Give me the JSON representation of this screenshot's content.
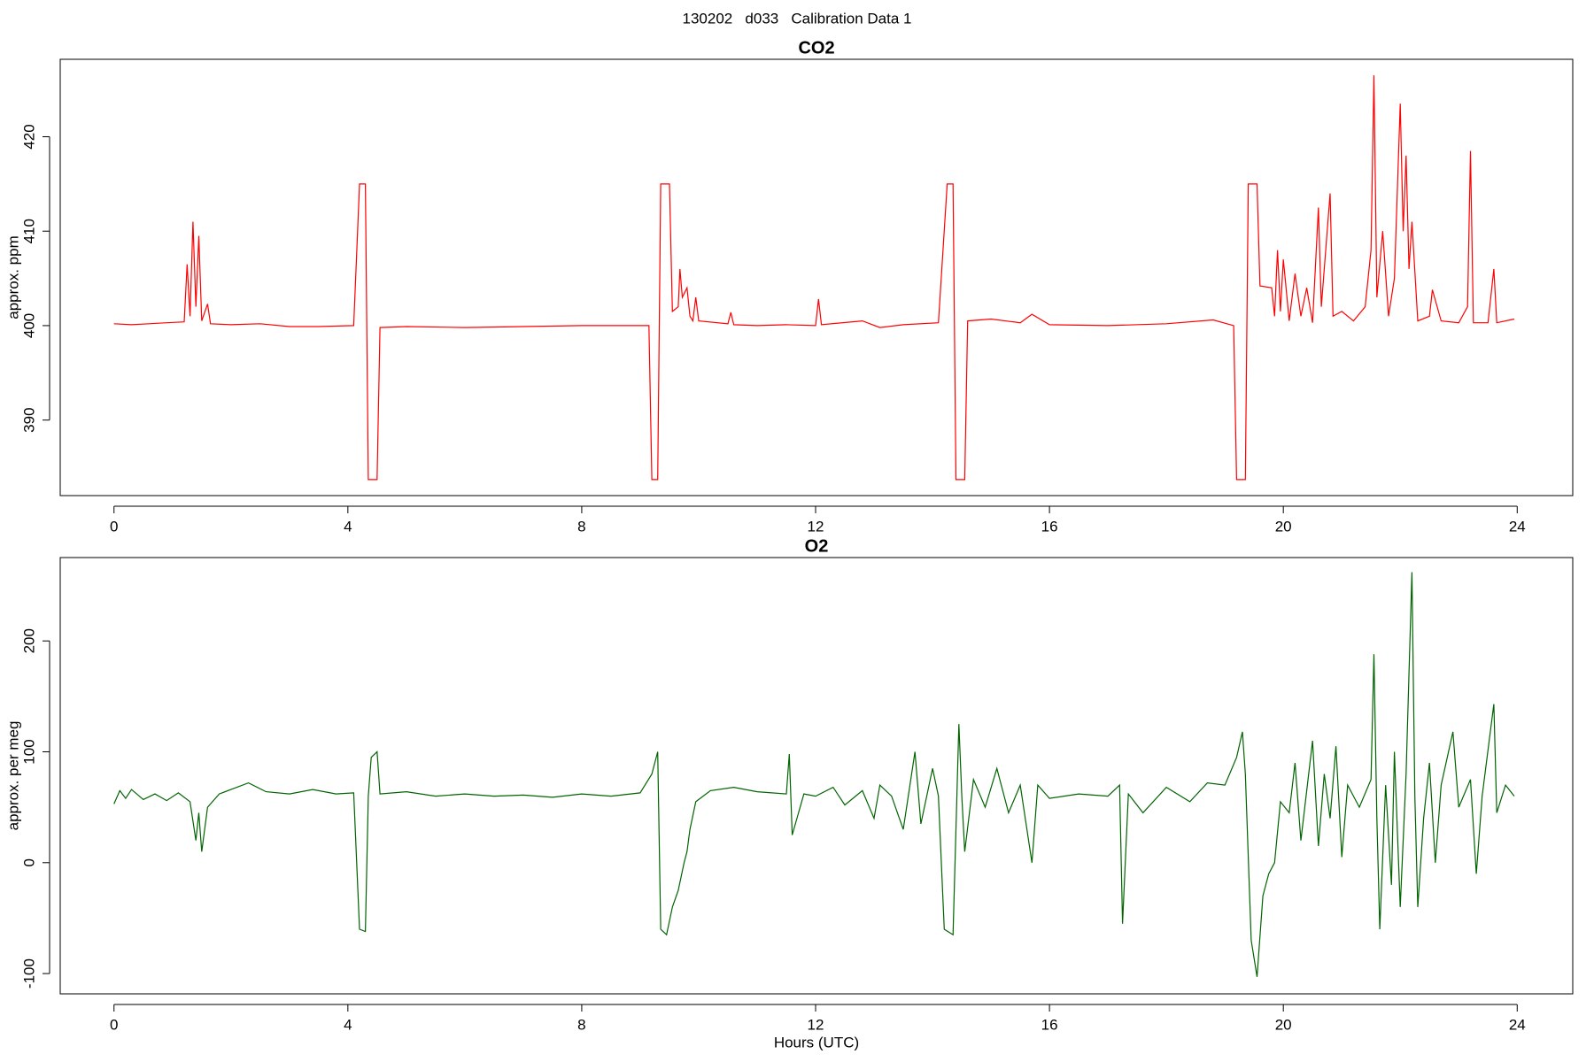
{
  "title": "130202   d033   Calibration Data 1",
  "chart_data": [
    {
      "type": "line",
      "title": "CO2",
      "ylabel": "approx. ppm",
      "color": "#ff0000",
      "x": [
        0,
        0.3,
        0.6,
        0.9,
        1.2,
        1.25,
        1.3,
        1.35,
        1.4,
        1.45,
        1.5,
        1.6,
        1.65,
        2,
        2.5,
        3,
        3.5,
        4.1,
        4.2,
        4.3,
        4.35,
        4.5,
        4.55,
        5,
        6,
        7,
        8,
        9.15,
        9.2,
        9.3,
        9.35,
        9.5,
        9.55,
        9.65,
        9.68,
        9.72,
        9.8,
        9.85,
        9.9,
        9.95,
        10,
        10.5,
        10.55,
        10.6,
        11,
        11.5,
        12,
        12.05,
        12.1,
        12.8,
        13.1,
        13.5,
        14.1,
        14.25,
        14.35,
        14.4,
        14.55,
        14.6,
        15,
        15.5,
        15.7,
        16,
        17,
        18,
        18.8,
        19.15,
        19.2,
        19.35,
        19.4,
        19.55,
        19.6,
        19.8,
        19.85,
        19.9,
        19.95,
        20,
        20.1,
        20.2,
        20.3,
        20.4,
        20.5,
        20.6,
        20.65,
        20.8,
        20.85,
        21,
        21.2,
        21.4,
        21.5,
        21.55,
        21.6,
        21.7,
        21.8,
        21.9,
        22,
        22.05,
        22.1,
        22.15,
        22.2,
        22.3,
        22.5,
        22.55,
        22.7,
        23,
        23.15,
        23.2,
        23.25,
        23.5,
        23.6,
        23.65,
        23.95
      ],
      "values": [
        400.2,
        400.1,
        400.2,
        400.3,
        400.4,
        406.5,
        401,
        411,
        402,
        409.5,
        400.5,
        402.3,
        400.2,
        400.1,
        400.2,
        399.9,
        399.9,
        400,
        415,
        415,
        383.7,
        383.7,
        399.8,
        399.9,
        399.8,
        399.9,
        400,
        400,
        383.7,
        383.7,
        415,
        415,
        401.5,
        402,
        406,
        403,
        404,
        401,
        400.5,
        403,
        400.5,
        400.2,
        401.4,
        400.1,
        400,
        400.1,
        400,
        402.8,
        400.1,
        400.5,
        399.8,
        400.1,
        400.3,
        415,
        415,
        383.7,
        383.7,
        400.5,
        400.7,
        400.3,
        401.2,
        400.1,
        400,
        400.2,
        400.6,
        400,
        383.7,
        383.7,
        415,
        415,
        404.2,
        404,
        401,
        408,
        401.5,
        407,
        400.5,
        405.5,
        401,
        404,
        400.3,
        412.5,
        402,
        414,
        401,
        401.5,
        400.5,
        402,
        408,
        426.5,
        403,
        410,
        401,
        405,
        423.5,
        410,
        418,
        406,
        411,
        400.5,
        401,
        403.8,
        400.5,
        400.3,
        402,
        418.5,
        400.3,
        400.3,
        406,
        400.3,
        400.7
      ],
      "xlim": [
        -0.92,
        24.95
      ],
      "ylim": [
        382.0,
        428.2
      ],
      "xticks": [
        0,
        4,
        8,
        12,
        16,
        20,
        24
      ],
      "yticks": [
        390,
        400,
        410,
        420
      ]
    },
    {
      "type": "line",
      "title": "O2",
      "ylabel": "approx. per meg",
      "xlabel": "Hours (UTC)",
      "color": "#006400",
      "x": [
        0,
        0.1,
        0.2,
        0.3,
        0.5,
        0.7,
        0.9,
        1.1,
        1.3,
        1.4,
        1.45,
        1.5,
        1.6,
        1.8,
        2,
        2.3,
        2.6,
        3,
        3.4,
        3.8,
        4.1,
        4.2,
        4.3,
        4.35,
        4.4,
        4.5,
        4.55,
        5,
        5.5,
        6,
        6.5,
        7,
        7.5,
        8,
        8.5,
        9,
        9.2,
        9.3,
        9.35,
        9.45,
        9.55,
        9.65,
        9.75,
        9.8,
        9.85,
        9.95,
        10.2,
        10.6,
        11,
        11.5,
        11.55,
        11.6,
        11.8,
        12,
        12.3,
        12.5,
        12.8,
        13,
        13.1,
        13.3,
        13.5,
        13.7,
        13.8,
        14,
        14.1,
        14.2,
        14.35,
        14.45,
        14.5,
        14.55,
        14.7,
        14.9,
        15.1,
        15.3,
        15.5,
        15.7,
        15.8,
        16,
        16.5,
        17,
        17.2,
        17.25,
        17.35,
        17.6,
        18,
        18.4,
        18.7,
        19,
        19.2,
        19.3,
        19.35,
        19.45,
        19.55,
        19.65,
        19.75,
        19.85,
        19.95,
        20.1,
        20.2,
        20.3,
        20.4,
        20.5,
        20.6,
        20.7,
        20.8,
        20.9,
        21,
        21.1,
        21.3,
        21.5,
        21.55,
        21.6,
        21.65,
        21.75,
        21.85,
        21.9,
        22,
        22.1,
        22.2,
        22.25,
        22.3,
        22.4,
        22.5,
        22.6,
        22.7,
        22.9,
        23,
        23.2,
        23.3,
        23.4,
        23.6,
        23.65,
        23.8,
        23.95
      ],
      "values": [
        53,
        65,
        58,
        66,
        57,
        62,
        56,
        63,
        55,
        20,
        45,
        10,
        50,
        62,
        66,
        72,
        64,
        62,
        66,
        62,
        63,
        -60,
        -62,
        60,
        95,
        100,
        62,
        64,
        60,
        62,
        60,
        61,
        59,
        62,
        60,
        63,
        80,
        100,
        -60,
        -65,
        -40,
        -25,
        0,
        10,
        30,
        55,
        65,
        68,
        64,
        62,
        98,
        25,
        62,
        60,
        68,
        52,
        65,
        40,
        70,
        60,
        30,
        100,
        35,
        85,
        60,
        -60,
        -65,
        125,
        60,
        10,
        75,
        50,
        85,
        45,
        70,
        0,
        70,
        58,
        62,
        60,
        70,
        -55,
        62,
        45,
        68,
        55,
        72,
        70,
        95,
        118,
        80,
        -70,
        -103,
        -30,
        -10,
        0,
        55,
        45,
        90,
        20,
        65,
        110,
        15,
        80,
        40,
        105,
        5,
        70,
        50,
        75,
        188,
        40,
        -60,
        70,
        -20,
        100,
        -40,
        80,
        262,
        60,
        -40,
        40,
        90,
        0,
        70,
        118,
        50,
        75,
        -10,
        60,
        143,
        45,
        70,
        60
      ],
      "xlim": [
        -0.92,
        24.95
      ],
      "ylim": [
        -118.3,
        275.2
      ],
      "xticks": [
        0,
        4,
        8,
        12,
        16,
        20,
        24
      ],
      "yticks": [
        -100,
        0,
        100,
        200
      ]
    }
  ]
}
